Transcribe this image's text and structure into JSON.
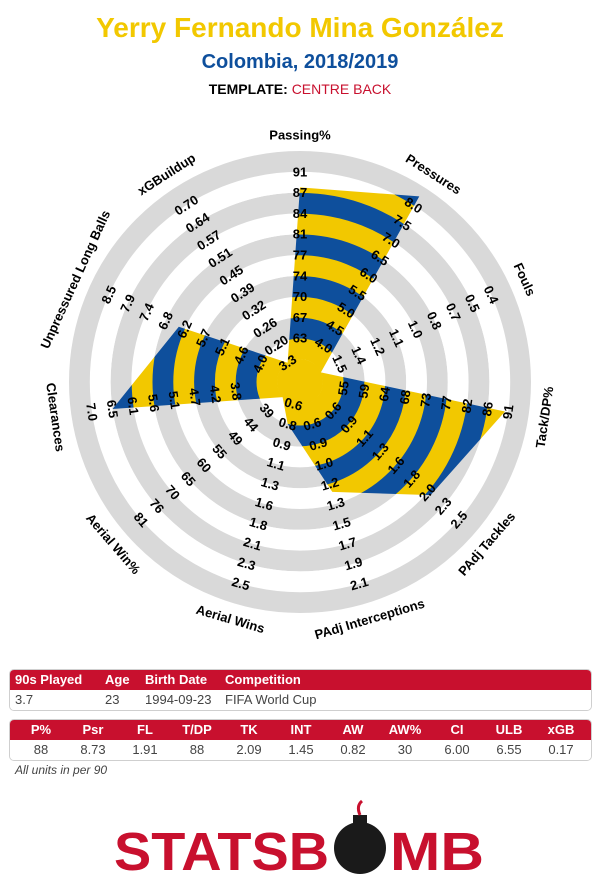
{
  "header": {
    "player_name": "Yerry Fernando Mina González",
    "team_season": "Colombia, 2018/2019",
    "template_label": "TEMPLATE:",
    "template_value": "CENTRE BACK"
  },
  "colors": {
    "primary": "#f2c800",
    "secondary": "#0e4f9c",
    "ring": "#d9d9d9",
    "accent": "#c8102e"
  },
  "chart_data": {
    "type": "radar",
    "rings": 10,
    "metrics": [
      {
        "label": "Passing%",
        "ticks": [
          "63",
          "67",
          "70",
          "74",
          "77",
          "81",
          "84",
          "87",
          "91"
        ],
        "value": 88,
        "display": "88",
        "fill": 0.825
      },
      {
        "label": "Pressures",
        "ticks": [
          "4.0",
          "4.5",
          "5.0",
          "5.5",
          "6.0",
          "6.5",
          "7.0",
          "7.5",
          "8.0"
        ],
        "value": 8.73,
        "display": "8.73",
        "fill": 0.95
      },
      {
        "label": "Fouls",
        "ticks": [
          "1.5",
          "1.4",
          "1.2",
          "1.1",
          "1.0",
          "0.8",
          "0.7",
          "0.5",
          "0.4"
        ],
        "value": 1.91,
        "display": "1.91",
        "fill": 0.0
      },
      {
        "label": "Tack/DP%",
        "ticks": [
          "55",
          "59",
          "64",
          "68",
          "73",
          "77",
          "82",
          "86",
          "91"
        ],
        "value": 88,
        "display": "88",
        "fill": 0.885
      },
      {
        "label": "PAdj Tackles",
        "ticks": [
          "0.9",
          "1.1",
          "1.3",
          "1.6",
          "1.8",
          "2.0",
          "2.3",
          "2.5"
        ],
        "value": 2.09,
        "display": "2.09",
        "fill": 0.72
      },
      {
        "label": "PAdj Interceptions",
        "ticks": [
          "0.9",
          "1.0",
          "1.2",
          "1.3",
          "1.5",
          "1.7",
          "1.9",
          "2.1"
        ],
        "value": 1.45,
        "display": "1.45",
        "fill": 0.44
      },
      {
        "label": "Aerial Wins",
        "ticks": [
          "0.8",
          "0.9",
          "1.1",
          "1.3",
          "1.6",
          "1.8",
          "2.1",
          "2.3",
          "2.5"
        ],
        "value": 0.82,
        "display": "0.82",
        "fill": 0.1
      },
      {
        "label": "Aerial Win%",
        "ticks": [
          "44",
          "49",
          "55",
          "60",
          "65",
          "70",
          "76",
          "81"
        ],
        "value": 30,
        "display": "30",
        "fill": 0.0
      },
      {
        "label": "Clearances",
        "ticks": [
          "3.8",
          "4.2",
          "4.7",
          "5.1",
          "5.6",
          "6.1",
          "6.5",
          "7.0"
        ],
        "value": 6.0,
        "display": "6.00",
        "fill": 0.8
      },
      {
        "label": "Unpressured Long Balls",
        "ticks": [
          "4.0",
          "4.6",
          "5.1",
          "5.7",
          "6.2",
          "6.8",
          "7.4",
          "7.9",
          "8.5"
        ],
        "value": 6.55,
        "display": "6.55",
        "fill": 0.53
      },
      {
        "label": "xGBuildup",
        "ticks": [
          "0.20",
          "0.26",
          "0.32",
          "0.39",
          "0.45",
          "0.51",
          "0.57",
          "0.64",
          "0.70"
        ],
        "value": 0.17,
        "display": "0.17",
        "fill": 0.0
      }
    ],
    "extra_ticks": [
      {
        "metric": 6,
        "text": "0.6"
      },
      {
        "metric": 7,
        "text": "39"
      },
      {
        "metric": 10,
        "text": "3.3"
      },
      {
        "metric": 5,
        "text": "0.6"
      },
      {
        "metric": 4,
        "text": "0.6"
      }
    ]
  },
  "info_table": {
    "headers": [
      "90s Played",
      "Age",
      "Birth Date",
      "Competition"
    ],
    "values": [
      "3.7",
      "23",
      "1994-09-23",
      "FIFA World Cup"
    ]
  },
  "stats_table": {
    "headers": [
      "P%",
      "Psr",
      "FL",
      "T/DP",
      "TK",
      "INT",
      "AW",
      "AW%",
      "CI",
      "ULB",
      "xGB"
    ],
    "values": [
      "88",
      "8.73",
      "1.91",
      "88",
      "2.09",
      "1.45",
      "0.82",
      "30",
      "6.00",
      "6.55",
      "0.17"
    ]
  },
  "note": "All units in per 90",
  "logo": {
    "text_left": "STATSB",
    "text_right": "MB",
    "bomb_icon": "bomb-icon"
  }
}
